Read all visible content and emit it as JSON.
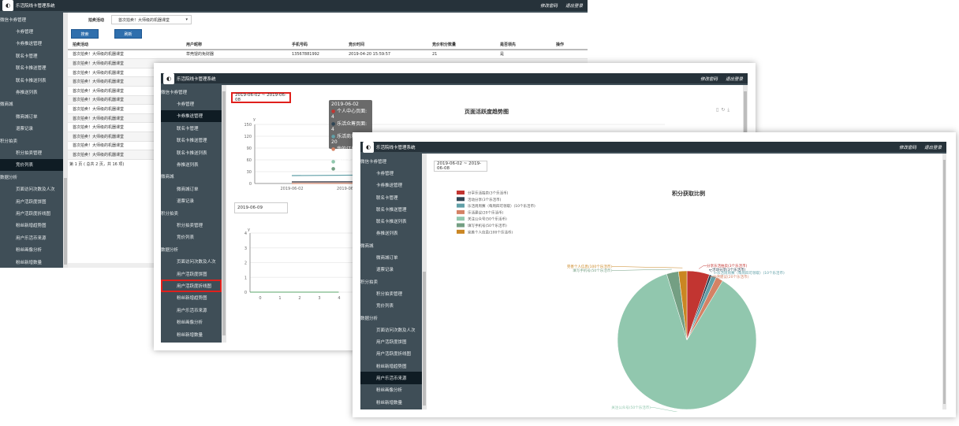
{
  "app": {
    "title": "乐活院线卡管理系统",
    "change_password": "修改密码",
    "logout": "退出登录",
    "logo_icon": "camera-logo-icon"
  },
  "sidebar": {
    "items": [
      {
        "label": "微信卡券管理",
        "type": "group"
      },
      {
        "label": "卡券管理",
        "type": "sub"
      },
      {
        "label": "卡券推送管理",
        "type": "sub"
      },
      {
        "label": "联名卡管理",
        "type": "sub"
      },
      {
        "label": "联名卡推送管理",
        "type": "sub"
      },
      {
        "label": "联名卡推送列表",
        "type": "sub"
      },
      {
        "label": "券推送列表",
        "type": "sub"
      },
      {
        "label": "微商城",
        "type": "group"
      },
      {
        "label": "微商城订单",
        "type": "sub"
      },
      {
        "label": "退票记录",
        "type": "sub"
      },
      {
        "label": "积分拍卖",
        "type": "group"
      },
      {
        "label": "积分拍卖管理",
        "type": "sub"
      },
      {
        "label": "竞价列表",
        "type": "sub"
      },
      {
        "label": "数据分析",
        "type": "group"
      },
      {
        "label": "页面访问次数及人次",
        "type": "sub"
      },
      {
        "label": "用户活跃度饼图",
        "type": "sub"
      },
      {
        "label": "用户活跃度折线图",
        "type": "sub"
      },
      {
        "label": "粉丝新增趋势图",
        "type": "sub"
      },
      {
        "label": "用户乐活币来源",
        "type": "sub"
      },
      {
        "label": "粉丝画像分析",
        "type": "sub"
      },
      {
        "label": "粉丝新增数量",
        "type": "sub"
      }
    ]
  },
  "window1": {
    "filter_label": "拍卖活动",
    "filter_value": "首次拍卖！大师级的机器课堂",
    "search_button": "搜索",
    "refresh_button": "刷新",
    "columns": [
      "拍卖活动",
      "用户昵称",
      "手机号码",
      "竞价时间",
      "竞价积分数量",
      "是否领先",
      "操作"
    ],
    "rows": [
      [
        "首次拍卖！大师级的机器课堂",
        "草壳馄的免财器",
        "13567881992",
        "2019-04-20 15:59:57",
        "21",
        "是",
        ""
      ],
      [
        "首次拍卖！大师级的机器课堂",
        "",
        "",
        "",
        "",
        "",
        ""
      ],
      [
        "首次拍卖！大师级的机器课堂",
        "",
        "",
        "",
        "",
        "",
        ""
      ],
      [
        "首次拍卖！大师级的机器课堂",
        "",
        "",
        "",
        "",
        "",
        ""
      ],
      [
        "首次拍卖！大师级的机器课堂",
        "",
        "",
        "",
        "",
        "",
        ""
      ],
      [
        "首次拍卖！大师级的机器课堂",
        "",
        "",
        "",
        "",
        "",
        ""
      ],
      [
        "首次拍卖！大师级的机器课堂",
        "",
        "",
        "",
        "",
        "",
        ""
      ],
      [
        "首次拍卖！大师级的机器课堂",
        "",
        "",
        "",
        "",
        "",
        ""
      ],
      [
        "首次拍卖！大师级的机器课堂",
        "",
        "",
        "",
        "",
        "",
        ""
      ],
      [
        "首次拍卖！大师级的机器课堂",
        "",
        "",
        "",
        "",
        "",
        ""
      ],
      [
        "首次拍卖！大师级的机器课堂",
        "",
        "",
        "",
        "",
        "",
        ""
      ],
      [
        "首次拍卖！大师级的机器课堂",
        "",
        "",
        "",
        "",
        "",
        ""
      ]
    ],
    "pager": "第 1 页 ( 总共 2 页，共 16 项)"
  },
  "window2": {
    "date_range": "2019-06-02 ~ 2019-06-08",
    "chart_title": "页面活跃度趋势图",
    "toolbar_icons": [
      "data-view-icon",
      "refresh-icon",
      "download-icon"
    ],
    "tooltip": {
      "date": "2019-06-02",
      "items": [
        {
          "label": "个人中心页面: 4",
          "color": "#c23531"
        },
        {
          "label": "乐活众筹页面: 4",
          "color": "#2f4554"
        },
        {
          "label": "乐活商城页面: 20",
          "color": "#61a0a8"
        },
        {
          "label": "我的订单页面: 0",
          "color": "#d48265"
        },
        {
          "label": "联名卡页面",
          "color": "#91c7ae"
        },
        {
          "label": "乐活币",
          "color": "#749f83"
        }
      ]
    },
    "date_single": "2019-06-09"
  },
  "window3": {
    "date_range": "2019-06-02 ~ 2019-06-08"
  },
  "chart_data": [
    {
      "type": "line",
      "title": "页面活跃度趋势图",
      "ylabel": "y",
      "ylim": [
        0,
        150
      ],
      "yticks": [
        "0",
        "30",
        "60",
        "90",
        "120",
        "150"
      ],
      "categories": [
        "2019-06-02",
        "2019-06-0"
      ],
      "series": [
        {
          "name": "个人中心页面",
          "values": [
            4,
            4
          ],
          "color": "#c23531"
        },
        {
          "name": "乐活众筹页面",
          "values": [
            4,
            5
          ],
          "color": "#2f4554"
        },
        {
          "name": "乐活商城页面",
          "values": [
            20,
            24
          ],
          "color": "#61a0a8"
        },
        {
          "name": "我的订单页面",
          "values": [
            0,
            2
          ],
          "color": "#d48265"
        }
      ]
    },
    {
      "type": "line",
      "ylabel": "y",
      "ylim": [
        0,
        4
      ],
      "yticks": [
        "0",
        "1",
        "2",
        "3",
        "4"
      ],
      "xticks": [
        "0",
        "1",
        "2",
        "3",
        "4"
      ],
      "series": [
        {
          "values": [
            0,
            0,
            0,
            0,
            0,
            0,
            0,
            0,
            0,
            0
          ],
          "color": "#5aa469"
        }
      ]
    },
    {
      "type": "pie",
      "title": "积分获取比例",
      "legend": "top-left",
      "slices": [
        {
          "name": "分享乐活拍卖(3个乐活币)",
          "value": 19,
          "color": "#c23531"
        },
        {
          "name": "活动分享(3个乐活币)",
          "value": 2,
          "color": "#2f4554"
        },
        {
          "name": "乐活周周赛（每周四可领取）(10个乐活币)",
          "value": 4,
          "color": "#61a0a8"
        },
        {
          "name": "乐活建议(20个乐活币)",
          "value": 6,
          "color": "#d48265"
        },
        {
          "name": "关注公众号(50个乐活币)",
          "value": 312,
          "color": "#91c7ae"
        },
        {
          "name": "填写手机号(50个乐活币)",
          "value": 10,
          "color": "#749f83"
        },
        {
          "name": "完善个人信息(100个乐活币)",
          "value": 7,
          "color": "#ca8622"
        }
      ]
    }
  ]
}
